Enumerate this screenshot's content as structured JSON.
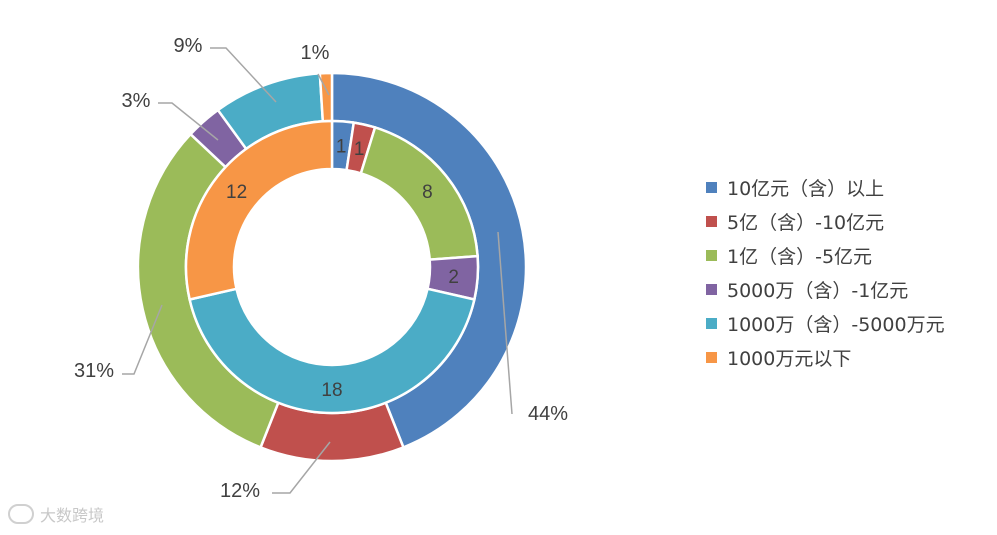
{
  "chart_data": {
    "type": "donut",
    "categories": [
      "10亿元（含）以上",
      "5亿（含）-10亿元",
      "1亿（含）-5亿元",
      "5000万（含）-1亿元",
      "1000万（含）-5000万元",
      "1000万元以下"
    ],
    "colors": [
      "#4f81bd",
      "#c0504d",
      "#9bbb59",
      "#8064a2",
      "#4bacc6",
      "#f79646"
    ],
    "series": [
      {
        "ring": "outer",
        "values": [
          44,
          12,
          31,
          3,
          9,
          1
        ],
        "labels": [
          "44%",
          "12%",
          "31%",
          "3%",
          "9%",
          "1%"
        ]
      },
      {
        "ring": "inner",
        "values": [
          1,
          1,
          8,
          2,
          18,
          12
        ],
        "labels": [
          "1",
          "1",
          "8",
          "2",
          "18",
          "12"
        ]
      }
    ],
    "legend_position": "right"
  },
  "watermark": {
    "text": "大数跨境"
  }
}
